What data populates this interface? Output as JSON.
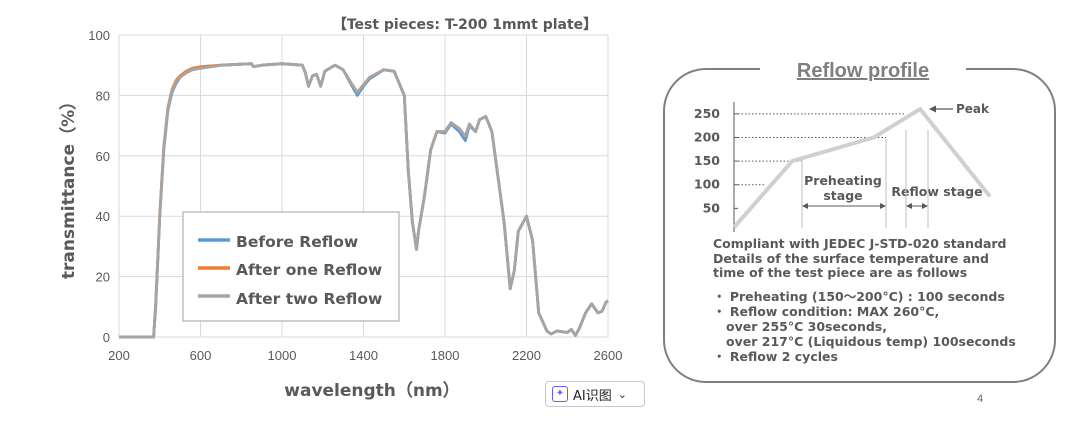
{
  "chart_data": [
    {
      "type": "line",
      "title": "【Test pieces: T-200 1mmt plate】",
      "xlabel": "wavelength（nm）",
      "ylabel": "transmittance（%）",
      "xlim": [
        200,
        2600
      ],
      "ylim": [
        0,
        100
      ],
      "xticks": [
        200,
        600,
        1000,
        1400,
        1800,
        2200,
        2600
      ],
      "yticks": [
        0,
        20,
        40,
        60,
        80,
        100
      ],
      "grid": true,
      "legend": "center-left",
      "x": [
        200,
        370,
        380,
        400,
        420,
        440,
        460,
        480,
        500,
        530,
        560,
        600,
        700,
        850,
        860,
        900,
        1000,
        1100,
        1115,
        1130,
        1150,
        1170,
        1190,
        1210,
        1260,
        1300,
        1340,
        1370,
        1400,
        1430,
        1500,
        1550,
        1600,
        1620,
        1640,
        1660,
        1670,
        1700,
        1730,
        1760,
        1800,
        1830,
        1870,
        1900,
        1920,
        1950,
        1970,
        2000,
        2030,
        2060,
        2090,
        2120,
        2140,
        2160,
        2200,
        2230,
        2260,
        2300,
        2320,
        2350,
        2400,
        2420,
        2440,
        2460,
        2490,
        2520,
        2550,
        2570,
        2590,
        2600
      ],
      "series": [
        {
          "name": "Before Reflow",
          "values": [
            0,
            0,
            10,
            40,
            62,
            75,
            81,
            84,
            86,
            87.5,
            88.5,
            89,
            90,
            90.5,
            89.5,
            90,
            90.5,
            90,
            87.5,
            83,
            86.5,
            87,
            83,
            88,
            90,
            88.5,
            83.5,
            80,
            83,
            85.5,
            88.5,
            88,
            80,
            55,
            38,
            29,
            35,
            47,
            62,
            68,
            67.5,
            70.5,
            68,
            65,
            70,
            68,
            72,
            73,
            68,
            53,
            38,
            16,
            22,
            35,
            40,
            32,
            8,
            2,
            1,
            2,
            1.5,
            2.5,
            0.5,
            3,
            8,
            11,
            8,
            8.5,
            11.5,
            12
          ]
        },
        {
          "name": "After one Reflow",
          "values": [
            0,
            0,
            11,
            41,
            63,
            76,
            82,
            85,
            86.5,
            88,
            89,
            89.5,
            90,
            90.5,
            89.5,
            90,
            90.5,
            90,
            87.5,
            83,
            86.5,
            87,
            83,
            88,
            90,
            88.5,
            84,
            81,
            83.5,
            86,
            88.5,
            88,
            80,
            55,
            38,
            29,
            35,
            47,
            62,
            68,
            68,
            71,
            69,
            66.5,
            70.5,
            68,
            72,
            73,
            68,
            53,
            38,
            16,
            22,
            35,
            40,
            32,
            8,
            2,
            1,
            2,
            1.5,
            2.5,
            0.5,
            3,
            8,
            11,
            8,
            8.5,
            11.5,
            12
          ]
        },
        {
          "name": "After two Reflow",
          "values": [
            0,
            0,
            10.5,
            40.5,
            62.5,
            75.5,
            81.5,
            84.5,
            86,
            87.5,
            88.5,
            89,
            90,
            90.5,
            89.5,
            90,
            90.5,
            90,
            87.5,
            83,
            86.5,
            87,
            83,
            88,
            90,
            88.5,
            84,
            81,
            83.5,
            86,
            88.5,
            88,
            80,
            55,
            38,
            29,
            35,
            47,
            62,
            68,
            68,
            71,
            69,
            66.5,
            70.5,
            68,
            72,
            73,
            68,
            53,
            38,
            16,
            22,
            35,
            40,
            32,
            8,
            2,
            1,
            2,
            1.5,
            2.5,
            0.5,
            3,
            8,
            11,
            8,
            8.5,
            11.5,
            12
          ]
        }
      ]
    },
    {
      "type": "line",
      "title": "Reflow profile",
      "ylim": [
        0,
        275
      ],
      "yticks": [
        50,
        100,
        150,
        200,
        250
      ],
      "x": [
        0,
        1,
        2.4,
        3.2,
        4.4
      ],
      "values": [
        10,
        150,
        200,
        260,
        75
      ],
      "annotations": {
        "peak": "Peak",
        "preheating": [
          "Preheating",
          "stage"
        ],
        "reflow": "Reflow stage"
      }
    }
  ],
  "colors": {
    "before": "#5b9bd5",
    "after_one": "#ed7d31",
    "after_two": "#a5a5a5",
    "profile_line": "#d0d0d0"
  },
  "reflow_panel": {
    "title": "Reflow profile",
    "intro": [
      "Compliant with JEDEC J-STD-020 standard",
      "Details of the surface temperature and",
      "time of the test piece are as follows"
    ],
    "bullets": [
      "・ Preheating (150～200°C) : 100 seconds",
      "・ Reflow condition: MAX 260°C,",
      "   over 255°C 30seconds,",
      "   over 217°C (Liquidous temp) 100seconds",
      "・ Reflow 2 cycles"
    ]
  },
  "ai_button": {
    "label": "AI识图",
    "icon": "ai-sparkle-icon",
    "chevron": "chevron-down-icon"
  },
  "page_number": "4"
}
